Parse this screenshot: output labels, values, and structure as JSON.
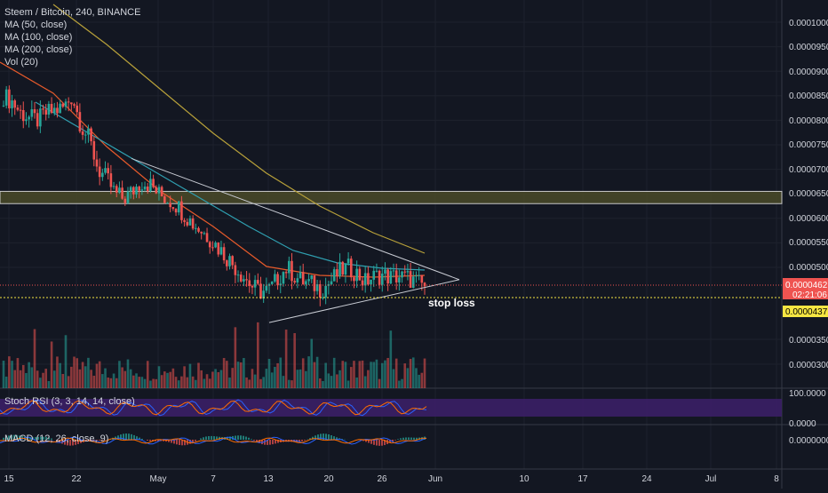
{
  "header": {
    "symbol_line": "Steem / Bitcoin, 240, BINANCE",
    "indicators": [
      "MA (50, close)",
      "MA (100, close)",
      "MA (200, close)",
      "Vol (20)"
    ]
  },
  "sub_panes": {
    "stoch_rsi_label": "Stoch RSI (3, 3, 14, 14, close)",
    "macd_label": "MACD (12, 26, close, 9)"
  },
  "colors": {
    "background": "#131722",
    "up": "#26a69a",
    "down": "#ef5350",
    "ma50": "#e65a2b",
    "ma100": "#2f9fb0",
    "ma200": "#b8a13a",
    "zone_fill": "#4a4a28",
    "zone_border": "#c9c9c9",
    "stoch_band": "#3b1f66",
    "stop_line": "#f5e642",
    "price_tag": "#ef5350",
    "stop_tag": "#f5e642"
  },
  "chart_data": {
    "type": "candlestick",
    "title": "Steem / Bitcoin, 240, BINANCE",
    "y_ticks": [
      "0.0001000",
      "0.0000950",
      "0.0000900",
      "0.0000850",
      "0.0000800",
      "0.0000750",
      "0.0000700",
      "0.0000650",
      "0.0000600",
      "0.0000550",
      "0.0000500",
      "0.0000350",
      "0.0000300"
    ],
    "x_ticks": [
      "15",
      "22",
      "May",
      "7",
      "13",
      "20",
      "26",
      "Jun",
      "10",
      "17",
      "24",
      "Jul",
      "8"
    ],
    "close_series": [
      8.5e-05,
      8.38e-05,
      8.15e-05,
      8.05e-05,
      8e-05,
      8.15e-05,
      8.2e-05,
      8.26e-05,
      8.5e-05,
      7.9e-05,
      7.6e-05,
      7e-05,
      6.8e-05,
      6.5e-05,
      6.4e-05,
      6.55e-05,
      6.75e-05,
      6.7e-05,
      6.5e-05,
      6.4e-05,
      6.3e-05,
      6.1e-05,
      5.9e-05,
      5.75e-05,
      5.6e-05,
      5.4e-05,
      5.2e-05,
      5e-05,
      4.8e-05,
      4.6e-05,
      4.5e-05,
      4.55e-05,
      4.8e-05,
      5e-05,
      4.8e-05,
      4.7e-05,
      4.65e-05,
      4.55e-05,
      4.7e-05,
      4.9e-05,
      5e-05,
      4.9e-05,
      4.7e-05,
      4.8e-05,
      4.85e-05,
      4.8e-05,
      4.82e-05,
      4.78e-05,
      4.7e-05,
      4.62e-05
    ],
    "resistance_zone": {
      "low": 6.3e-05,
      "high": 6.55e-05
    },
    "stop_loss": {
      "value": "0.0000437",
      "label": "stop loss"
    },
    "current_price": {
      "value": "0.0000462",
      "countdown": "02:21:06"
    },
    "triangle": {
      "top_start": 7.22e-05,
      "apex": 4.75e-05,
      "bottom_start": 4.2e-05
    }
  },
  "stoch": {
    "ticks": [
      "100.0000",
      "0.0000"
    ]
  },
  "macd": {
    "ticks": [
      "0.0000000"
    ]
  }
}
